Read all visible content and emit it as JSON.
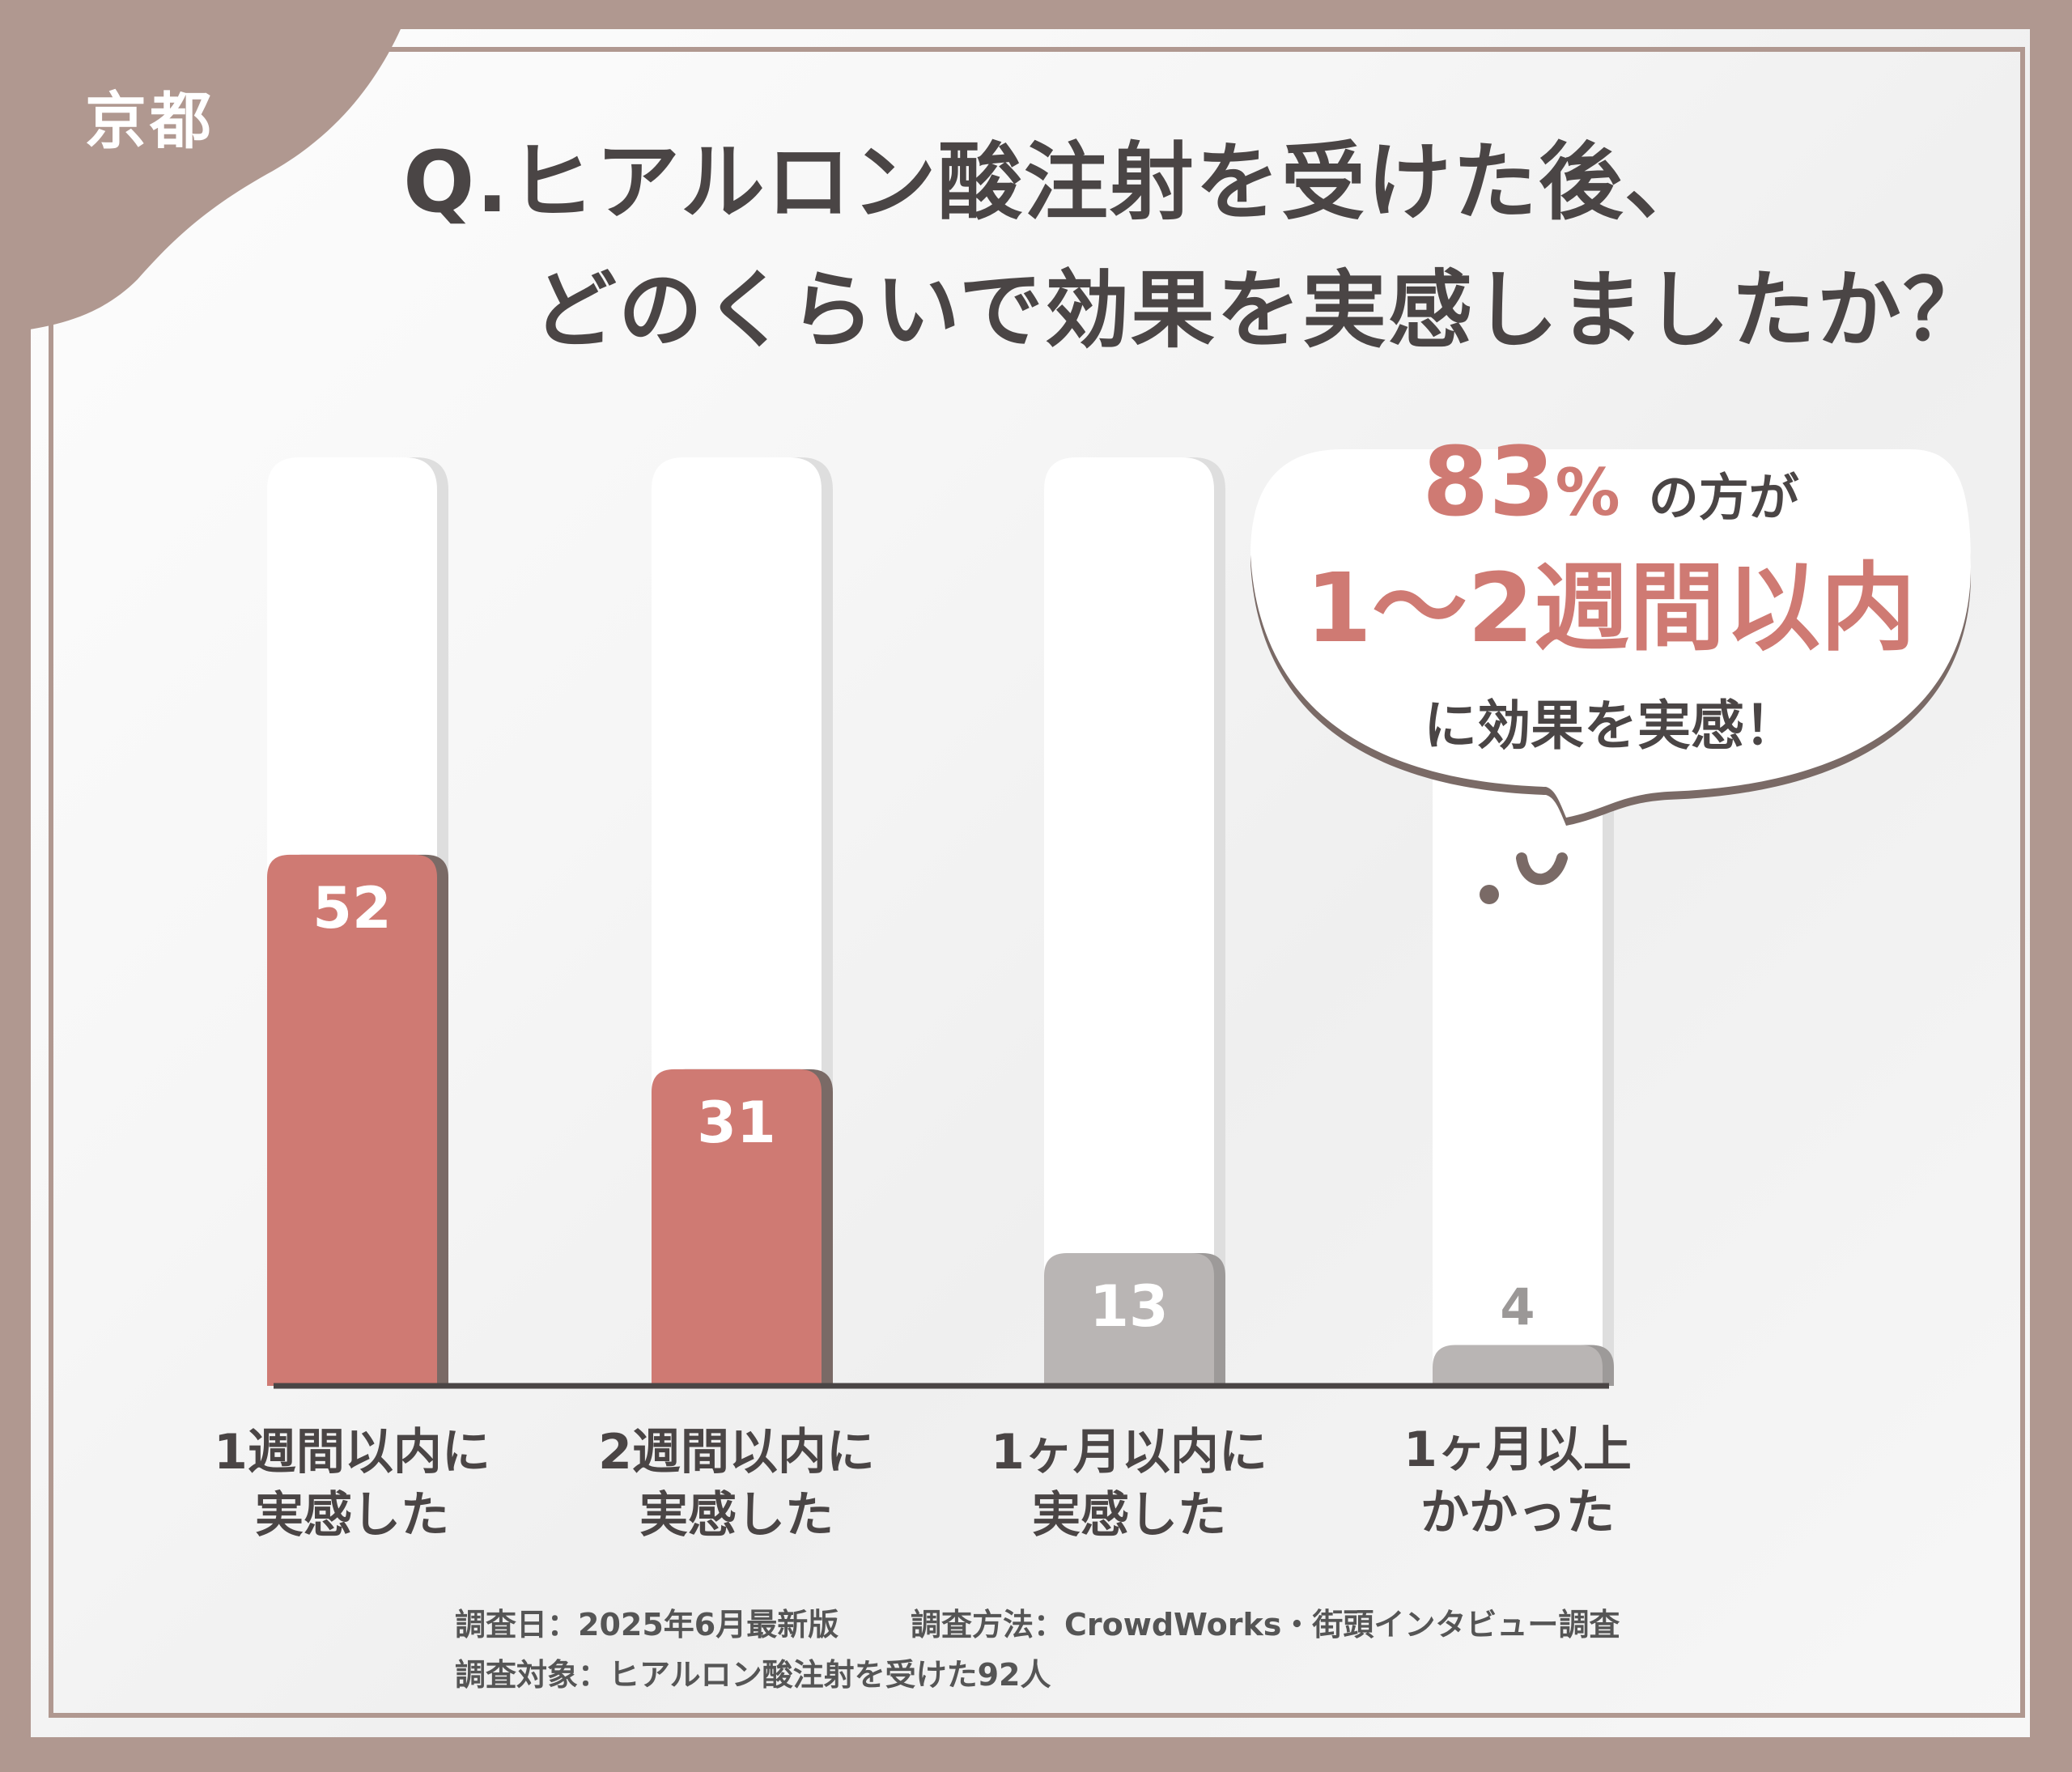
{
  "region_label": "京都",
  "title": {
    "line1": "Q.ヒアルロン酸注射を受けた後、",
    "line2": "どのくらいで効果を実感しましたか？"
  },
  "callout": {
    "percent": "83",
    "percent_sign": "%",
    "suffix": "の方が",
    "highlight": "1〜2週間以内",
    "line3": "に効果を実感！"
  },
  "colors": {
    "frame": "#b09890",
    "highlight_bar": "#cf7a73",
    "muted_bar": "#b9b5b4",
    "text": "#4a4545",
    "callout_accent": "#cf7a73"
  },
  "chart_data": {
    "type": "bar",
    "categories": [
      "1週間以内に\n実感した",
      "2週間以内に\n実感した",
      "1ヶ月以内に\n実感した",
      "1ヶ月以上\nかかった"
    ],
    "values": [
      52,
      31,
      13,
      4
    ],
    "ylim": [
      0,
      100
    ],
    "grid": false,
    "title": "",
    "xlabel": "",
    "ylabel": ""
  },
  "notes": {
    "survey_date": "調査日：2025年6月最新版",
    "survey_method": "調査方法：CrowdWorks・街頭インタビュー調査",
    "survey_target": "調査対象：ヒアルロン酸注射を受けた92人"
  }
}
